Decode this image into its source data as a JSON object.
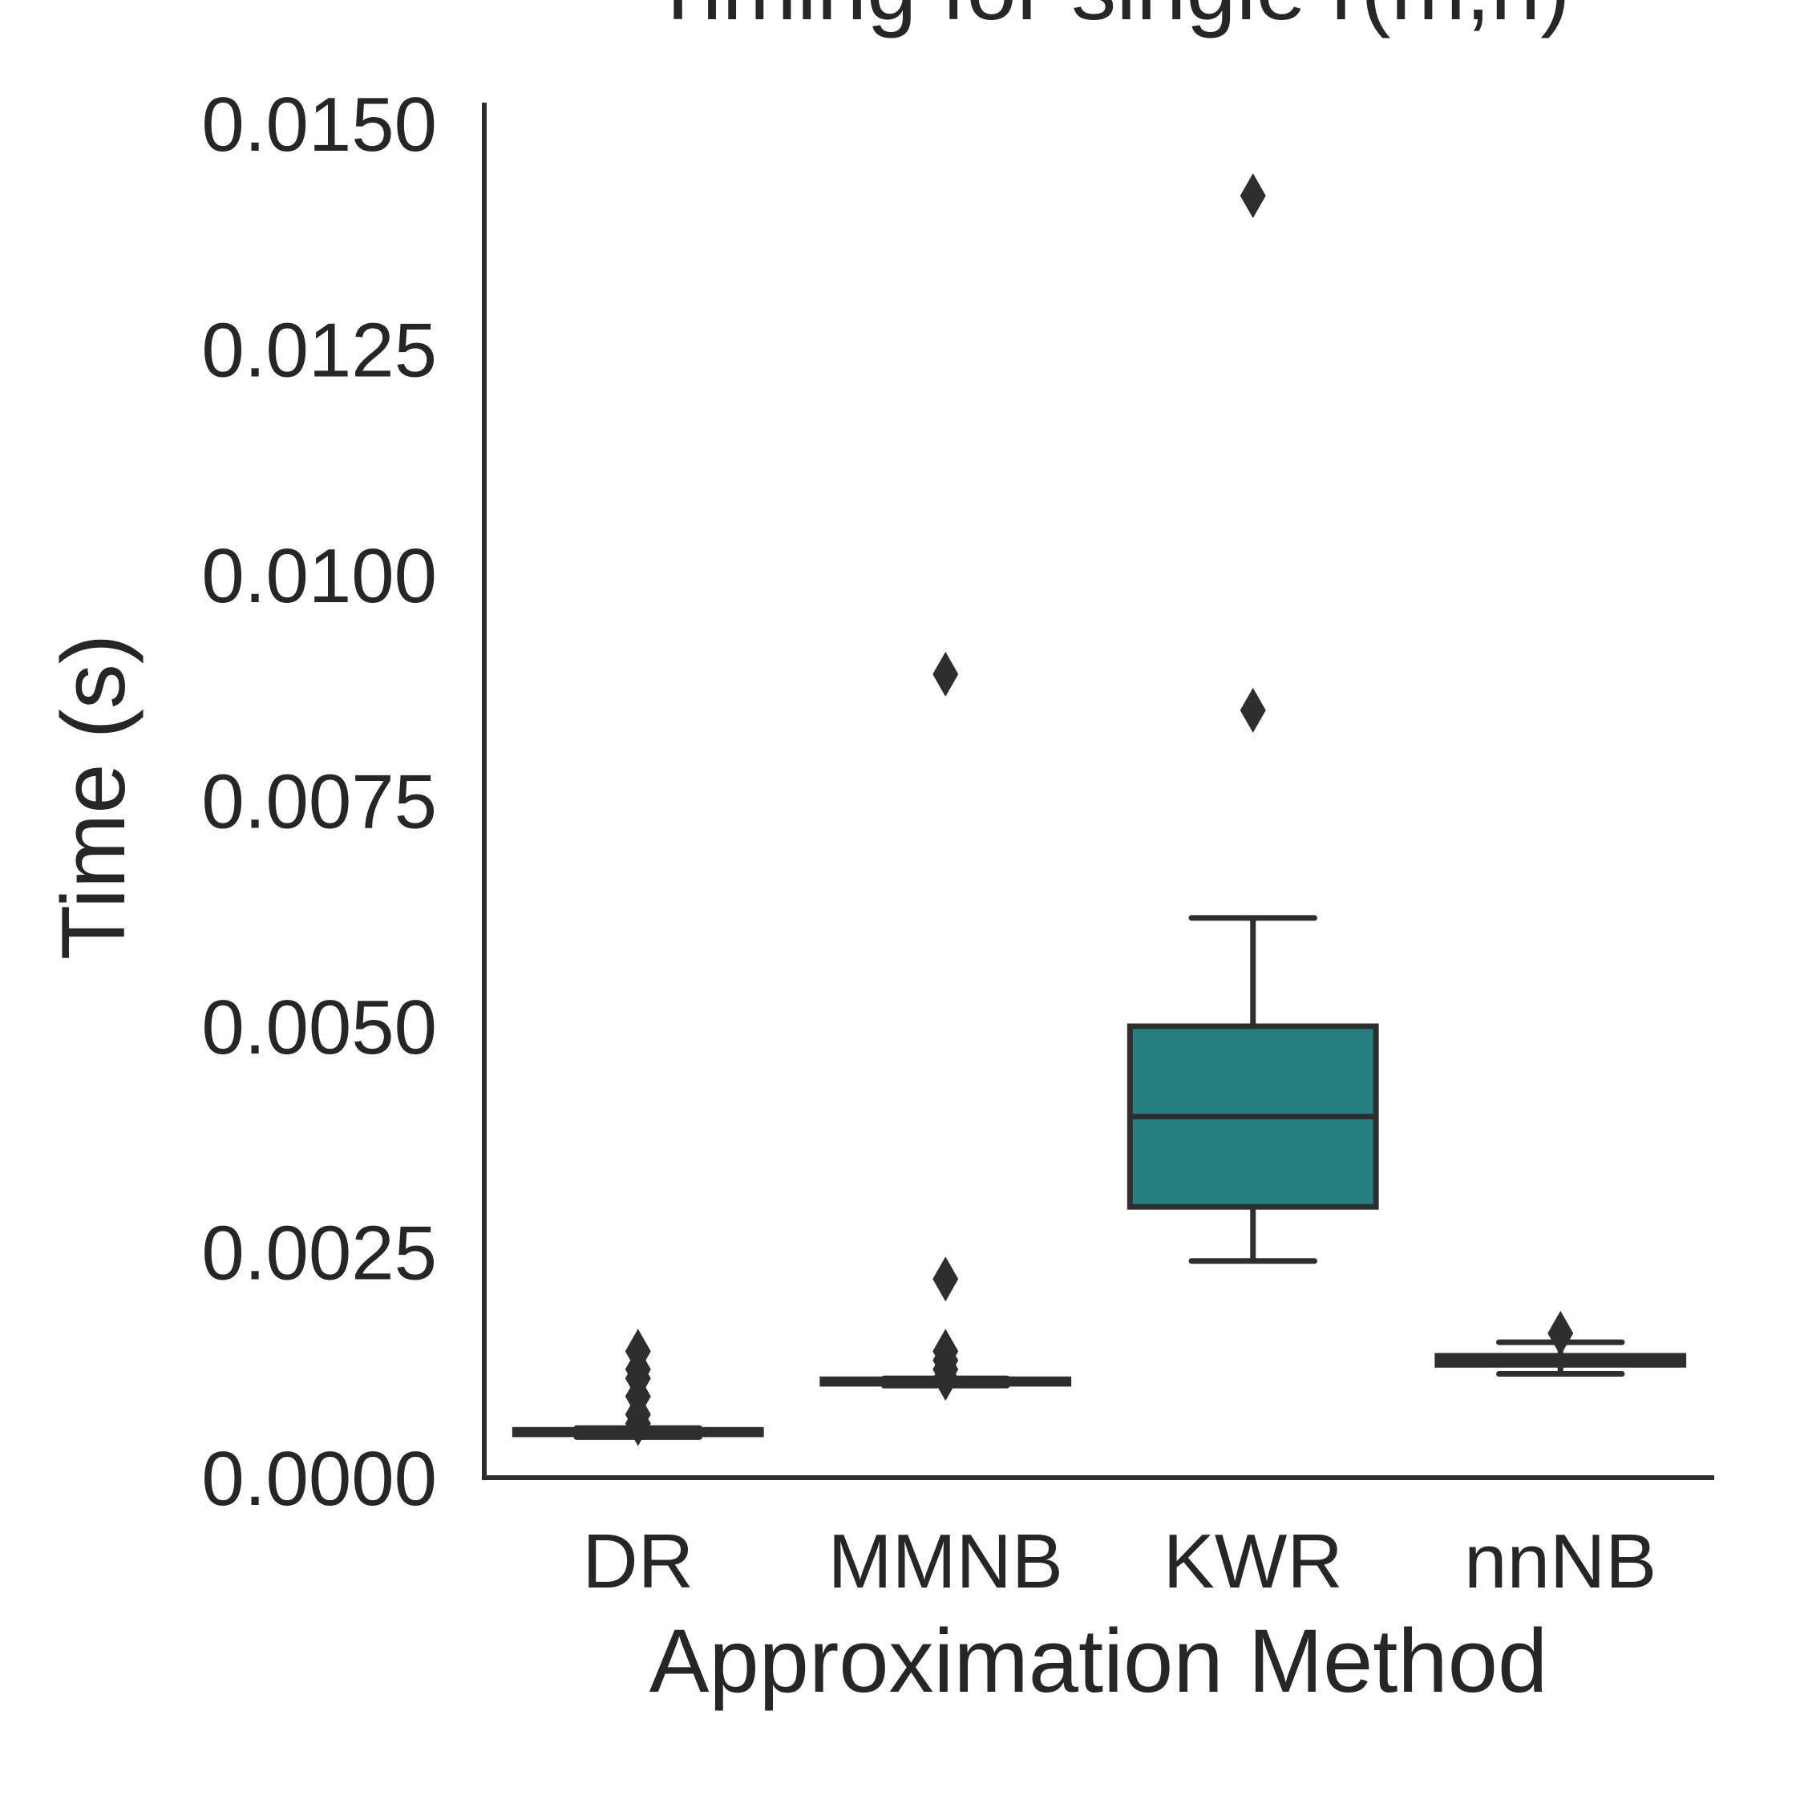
{
  "chart_data": {
    "type": "box",
    "title": "Timing for single r(m,n)",
    "xlabel": "Approximation Method",
    "ylabel": "Time (s)",
    "ylim": [
      0,
      0.015
    ],
    "yticks": [
      "0.0000",
      "0.0025",
      "0.0050",
      "0.0075",
      "0.0100",
      "0.0125",
      "0.0150"
    ],
    "ytick_values": [
      0,
      0.0025,
      0.005,
      0.0075,
      0.01,
      0.0125,
      0.015
    ],
    "categories": [
      "DR",
      "MMNB",
      "KWR",
      "nnNB"
    ],
    "grid": false,
    "boxes": [
      {
        "name": "DR",
        "whisker_low": 0.00045,
        "q1": 0.00048,
        "median": 0.0005,
        "q3": 0.00053,
        "whisker_high": 0.00055,
        "fliers": [
          0.0006,
          0.0007,
          0.0009,
          0.0011,
          0.0012,
          0.0014
        ],
        "color": "#1f3a6b"
      },
      {
        "name": "MMNB",
        "whisker_low": 0.00102,
        "q1": 0.00104,
        "median": 0.00106,
        "q3": 0.00109,
        "whisker_high": 0.0011,
        "fliers": [
          0.0011,
          0.0012,
          0.0013,
          0.0014,
          0.0022,
          0.0089
        ],
        "color": "#3a3a7a"
      },
      {
        "name": "KWR",
        "whisker_low": 0.0024,
        "q1": 0.003,
        "median": 0.004,
        "q3": 0.005,
        "whisker_high": 0.0062,
        "fliers": [
          0.0085,
          0.0142
        ],
        "color": "#268080"
      },
      {
        "name": "nnNB",
        "whisker_low": 0.00115,
        "q1": 0.00125,
        "median": 0.0013,
        "q3": 0.00135,
        "whisker_high": 0.0015,
        "fliers": [
          0.0016
        ],
        "color": "#5ec962"
      }
    ],
    "colors": {
      "ink": "#2e2e2e",
      "text": "#262626"
    }
  }
}
